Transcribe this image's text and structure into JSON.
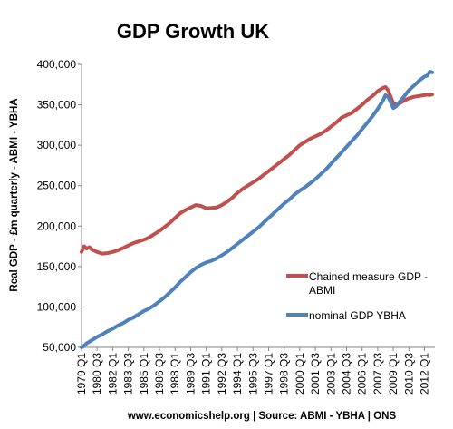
{
  "chart_data": {
    "type": "line",
    "title": "GDP Growth UK",
    "ylabel": "Real GDP - £m quarterly - ABMI - YBHA",
    "source": "www.economicshelp.org | Source:  ABMI - YBHA | ONS",
    "ylim": [
      50000,
      400000
    ],
    "yticks": [
      "50,000",
      "100,000",
      "150,000",
      "200,000",
      "250,000",
      "300,000",
      "350,000",
      "400,000"
    ],
    "ytick_values": [
      50000,
      100000,
      150000,
      200000,
      250000,
      300000,
      350000,
      400000
    ],
    "xtick_labels": [
      "1979 Q1",
      "1980 Q3",
      "1982 Q1",
      "1983 Q3",
      "1985 Q1",
      "1986 Q3",
      "1988 Q1",
      "1989 Q3",
      "1991 Q1",
      "1992 Q3",
      "1994 Q1",
      "1995 Q3",
      "1997 Q1",
      "1998 Q3",
      "2000 Q1",
      "2001 Q3",
      "2003 Q1",
      "2004 Q3",
      "2006 Q1",
      "2007 Q3",
      "2009 Q1",
      "2010 Q3",
      "2012 Q1"
    ],
    "x": [
      1979.0,
      1979.25,
      1979.5,
      1979.75,
      1980.0,
      1980.5,
      1981.0,
      1981.5,
      1982.0,
      1982.5,
      1983.0,
      1983.5,
      1984.0,
      1984.5,
      1985.0,
      1985.5,
      1986.0,
      1986.5,
      1987.0,
      1987.5,
      1988.0,
      1988.5,
      1989.0,
      1989.5,
      1990.0,
      1990.5,
      1991.0,
      1991.5,
      1992.0,
      1992.5,
      1993.0,
      1993.5,
      1994.0,
      1994.5,
      1995.0,
      1995.5,
      1996.0,
      1996.5,
      1997.0,
      1997.5,
      1998.0,
      1998.5,
      1999.0,
      1999.5,
      2000.0,
      2000.5,
      2001.0,
      2001.5,
      2002.0,
      2002.5,
      2003.0,
      2003.5,
      2004.0,
      2004.5,
      2005.0,
      2005.5,
      2006.0,
      2006.5,
      2007.0,
      2007.5,
      2008.0,
      2008.25,
      2008.5,
      2008.75,
      2009.0,
      2009.25,
      2009.5,
      2010.0,
      2010.5,
      2011.0,
      2011.5,
      2012.0,
      2012.25,
      2012.5,
      2012.75
    ],
    "series": [
      {
        "name": "Chained measure GDP - ABMI",
        "color": "#c0504d",
        "legend_lines": [
          "Chained measure GDP -",
          "ABMI"
        ],
        "values": [
          168000,
          175000,
          172000,
          174000,
          171000,
          168000,
          166000,
          166500,
          168000,
          170000,
          173000,
          176000,
          179000,
          181000,
          183000,
          186000,
          190000,
          194000,
          199000,
          204000,
          210000,
          216000,
          220000,
          223000,
          226000,
          225000,
          222000,
          222500,
          223000,
          226000,
          230000,
          235000,
          241000,
          246000,
          250000,
          254000,
          258000,
          263000,
          268000,
          273000,
          278000,
          283000,
          288000,
          294000,
          300000,
          304000,
          308000,
          311000,
          314000,
          318000,
          323000,
          328000,
          334000,
          337000,
          340000,
          345000,
          350000,
          356000,
          361000,
          367000,
          371000,
          372000,
          368000,
          360000,
          352000,
          350000,
          351000,
          355000,
          358000,
          360000,
          361000,
          362000,
          362500,
          362000,
          363000
        ]
      },
      {
        "name": "nominal GDP  YBHA",
        "color": "#4f81bd",
        "legend_lines": [
          "nominal GDP  YBHA"
        ],
        "values": [
          50000,
          52000,
          55000,
          57000,
          59000,
          63000,
          66000,
          70000,
          73000,
          77000,
          80000,
          84000,
          87000,
          91000,
          95000,
          98000,
          102000,
          107000,
          112000,
          118000,
          124000,
          131000,
          137000,
          143000,
          148000,
          152000,
          155000,
          157000,
          160000,
          164000,
          168000,
          173000,
          178000,
          183000,
          188000,
          193000,
          198000,
          204000,
          210000,
          216000,
          222000,
          228000,
          233000,
          239000,
          244000,
          248000,
          253000,
          258000,
          264000,
          270000,
          277000,
          284000,
          291000,
          298000,
          305000,
          312000,
          320000,
          328000,
          336000,
          345000,
          355000,
          362000,
          360000,
          353000,
          346000,
          348000,
          352000,
          360000,
          368000,
          374000,
          380000,
          385000,
          386000,
          391000,
          390000
        ]
      }
    ],
    "legend_placement": "bottom-right",
    "grid": false
  }
}
